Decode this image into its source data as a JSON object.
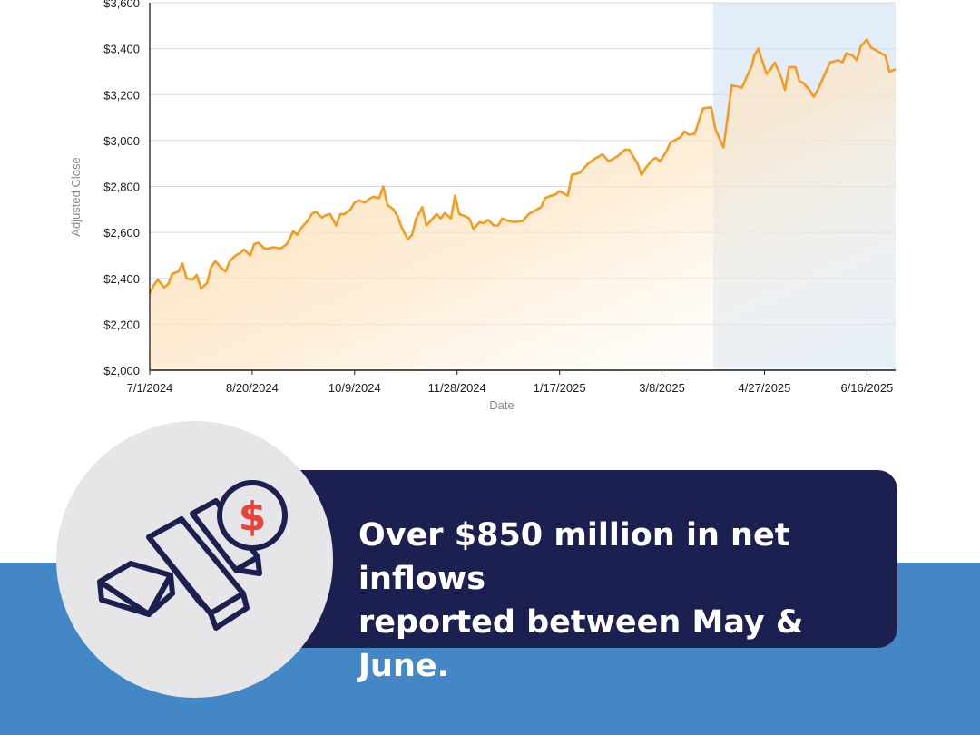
{
  "chart_data": {
    "type": "area",
    "xlabel": "Date",
    "ylabel": "Adjusted Close",
    "ylim": [
      2000,
      3600
    ],
    "yticks": [
      2000,
      2200,
      2400,
      2600,
      2800,
      3000,
      3200,
      3400,
      3600
    ],
    "ytick_labels": [
      "$2,000",
      "$2,200",
      "$2,400",
      "$2,600",
      "$2,800",
      "$3,000",
      "$3,200",
      "$3,400",
      "$3,600"
    ],
    "xlim": [
      "2024-07-01",
      "2025-06-30"
    ],
    "xticks": [
      "2024-07-01",
      "2024-08-20",
      "2024-10-09",
      "2024-11-28",
      "2025-01-17",
      "2025-03-08",
      "2025-04-27",
      "2025-06-16"
    ],
    "xtick_labels": [
      "7/1/2024",
      "8/20/2024",
      "10/9/2024",
      "11/28/2024",
      "1/17/2025",
      "3/8/2025",
      "4/27/2025",
      "6/16/2025"
    ],
    "highlight_range": [
      "2025-04-02",
      "2025-06-30"
    ],
    "grid": true,
    "line_color": "#f39c1f",
    "highlight_color": "#e3edf7",
    "x": [
      "2024-07-01",
      "2024-07-03",
      "2024-07-05",
      "2024-07-08",
      "2024-07-10",
      "2024-07-12",
      "2024-07-15",
      "2024-07-17",
      "2024-07-19",
      "2024-07-22",
      "2024-07-24",
      "2024-07-26",
      "2024-07-29",
      "2024-07-31",
      "2024-08-02",
      "2024-08-05",
      "2024-08-07",
      "2024-08-09",
      "2024-08-12",
      "2024-08-14",
      "2024-08-16",
      "2024-08-19",
      "2024-08-21",
      "2024-08-23",
      "2024-08-26",
      "2024-08-28",
      "2024-08-30",
      "2024-09-03",
      "2024-09-06",
      "2024-09-09",
      "2024-09-11",
      "2024-09-13",
      "2024-09-16",
      "2024-09-18",
      "2024-09-20",
      "2024-09-23",
      "2024-09-25",
      "2024-09-27",
      "2024-09-30",
      "2024-10-02",
      "2024-10-04",
      "2024-10-07",
      "2024-10-09",
      "2024-10-11",
      "2024-10-14",
      "2024-10-16",
      "2024-10-18",
      "2024-10-21",
      "2024-10-23",
      "2024-10-25",
      "2024-10-28",
      "2024-10-30",
      "2024-11-01",
      "2024-11-04",
      "2024-11-06",
      "2024-11-08",
      "2024-11-11",
      "2024-11-13",
      "2024-11-15",
      "2024-11-18",
      "2024-11-20",
      "2024-11-22",
      "2024-11-25",
      "2024-11-27",
      "2024-11-29",
      "2024-12-02",
      "2024-12-04",
      "2024-12-06",
      "2024-12-09",
      "2024-12-11",
      "2024-12-13",
      "2024-12-16",
      "2024-12-18",
      "2024-12-20",
      "2024-12-23",
      "2024-12-26",
      "2024-12-30",
      "2025-01-02",
      "2025-01-06",
      "2025-01-08",
      "2025-01-10",
      "2025-01-13",
      "2025-01-15",
      "2025-01-17",
      "2025-01-21",
      "2025-01-23",
      "2025-01-27",
      "2025-01-29",
      "2025-01-31",
      "2025-02-03",
      "2025-02-05",
      "2025-02-07",
      "2025-02-10",
      "2025-02-12",
      "2025-02-14",
      "2025-02-18",
      "2025-02-20",
      "2025-02-24",
      "2025-02-26",
      "2025-02-28",
      "2025-03-03",
      "2025-03-05",
      "2025-03-07",
      "2025-03-10",
      "2025-03-12",
      "2025-03-14",
      "2025-03-17",
      "2025-03-19",
      "2025-03-21",
      "2025-03-24",
      "2025-03-26",
      "2025-03-28",
      "2025-04-01",
      "2025-04-03",
      "2025-04-07",
      "2025-04-09",
      "2025-04-11",
      "2025-04-14",
      "2025-04-16",
      "2025-04-21",
      "2025-04-22",
      "2025-04-24",
      "2025-04-28",
      "2025-04-30",
      "2025-05-02",
      "2025-05-05",
      "2025-05-07",
      "2025-05-09",
      "2025-05-12",
      "2025-05-14",
      "2025-05-16",
      "2025-05-19",
      "2025-05-21",
      "2025-05-23",
      "2025-05-27",
      "2025-05-29",
      "2025-06-02",
      "2025-06-04",
      "2025-06-06",
      "2025-06-09",
      "2025-06-11",
      "2025-06-13",
      "2025-06-16",
      "2025-06-18",
      "2025-06-20",
      "2025-06-23",
      "2025-06-25",
      "2025-06-27",
      "2025-06-30"
    ],
    "y": [
      2335,
      2370,
      2395,
      2360,
      2375,
      2420,
      2430,
      2465,
      2400,
      2395,
      2415,
      2355,
      2380,
      2450,
      2475,
      2445,
      2430,
      2475,
      2500,
      2510,
      2525,
      2500,
      2550,
      2555,
      2530,
      2530,
      2535,
      2530,
      2550,
      2605,
      2590,
      2620,
      2650,
      2680,
      2690,
      2665,
      2675,
      2680,
      2630,
      2680,
      2680,
      2700,
      2730,
      2740,
      2730,
      2745,
      2755,
      2750,
      2800,
      2720,
      2700,
      2670,
      2620,
      2570,
      2590,
      2660,
      2710,
      2630,
      2650,
      2680,
      2660,
      2685,
      2660,
      2760,
      2680,
      2670,
      2660,
      2615,
      2645,
      2640,
      2655,
      2630,
      2630,
      2660,
      2650,
      2645,
      2650,
      2680,
      2700,
      2710,
      2750,
      2760,
      2765,
      2780,
      2760,
      2850,
      2860,
      2880,
      2900,
      2920,
      2930,
      2940,
      2910,
      2920,
      2930,
      2960,
      2960,
      2900,
      2850,
      2880,
      2915,
      2925,
      2910,
      2950,
      2990,
      3000,
      3015,
      3040,
      3025,
      3030,
      3085,
      3140,
      3145,
      3050,
      2970,
      3100,
      3240,
      3235,
      3230,
      3330,
      3370,
      3400,
      3290,
      3310,
      3340,
      3280,
      3220,
      3320,
      3320,
      3260,
      3250,
      3220,
      3190,
      3220,
      3300,
      3340,
      3350,
      3340,
      3380,
      3370,
      3350,
      3410,
      3440,
      3405,
      3395,
      3380,
      3370,
      3300,
      3310
    ]
  },
  "callout": {
    "line1": "Over $850 million in net inflows",
    "line2": "reported between May & June."
  },
  "icon": {
    "name": "gold-bars-dollar-icon",
    "dollar_symbol": "$",
    "stroke_color": "#1b2050",
    "dollar_color": "#e8443a"
  },
  "colors": {
    "callout_bg": "#1b2050",
    "band_bg": "#4387c7",
    "circle_bg": "#e6e6e8"
  }
}
